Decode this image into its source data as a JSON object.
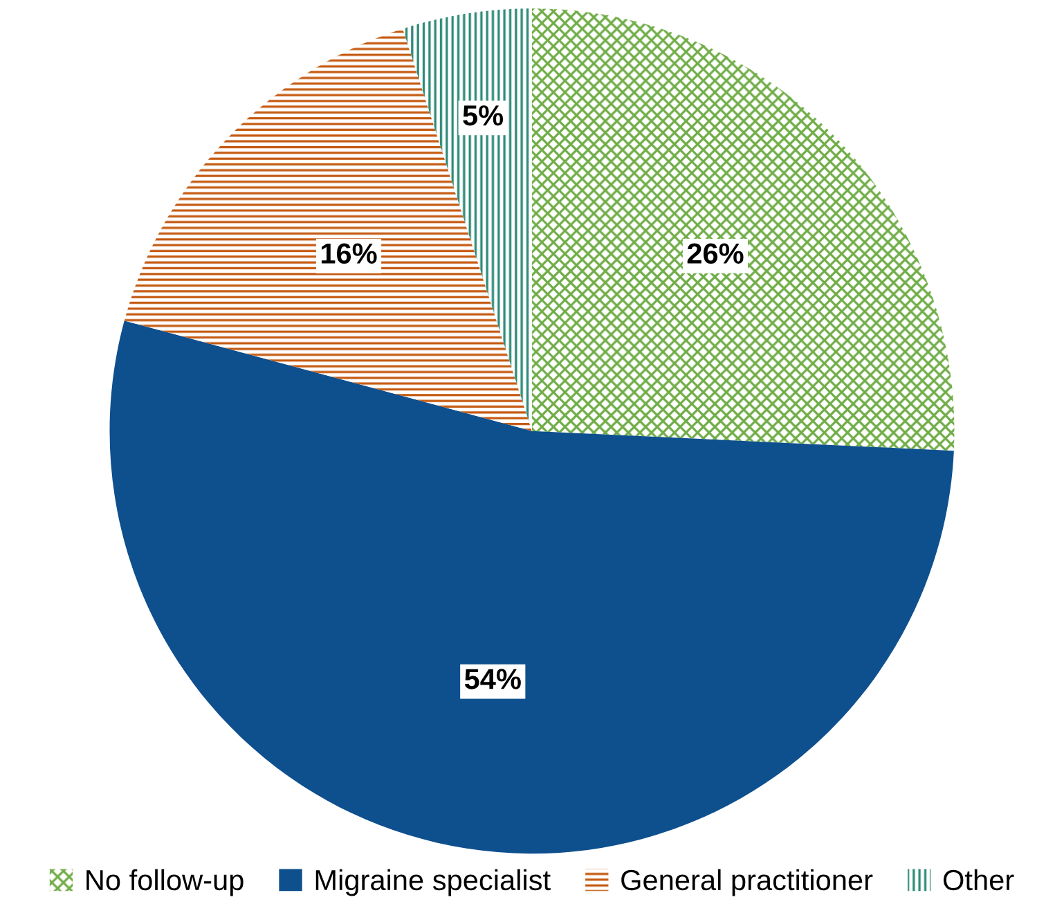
{
  "chart_data": {
    "type": "pie",
    "categories": [
      "No follow-up",
      "Migraine specialist",
      "General practitioner",
      "Other"
    ],
    "values": [
      26,
      54,
      16,
      5
    ],
    "colors": [
      "#70ad47",
      "#0e4f8e",
      "#c55a11",
      "#2e8b7a"
    ],
    "value_labels": [
      "26%",
      "54%",
      "16%",
      "5%"
    ],
    "legend": "bottom"
  }
}
